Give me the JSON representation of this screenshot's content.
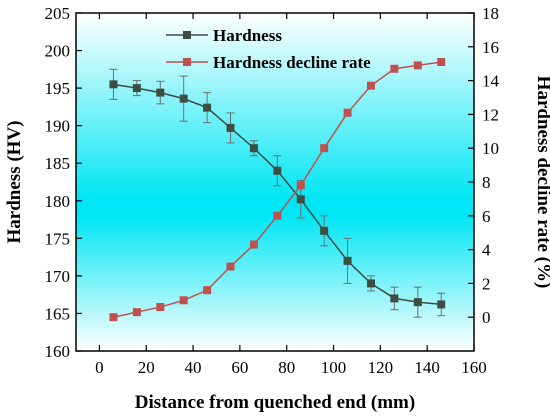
{
  "chart_data": {
    "type": "line",
    "xlabel": "Distance from quenched end (mm)",
    "ylabel_left": "Hardness (HV)",
    "ylabel_right": "Hardness decline rate (%)",
    "xlim": [
      -10,
      160
    ],
    "xticks": [
      0,
      20,
      40,
      60,
      80,
      100,
      120,
      140,
      160
    ],
    "ylim_left": [
      160,
      205
    ],
    "yticks_left": [
      160,
      165,
      170,
      175,
      180,
      185,
      190,
      195,
      200,
      205
    ],
    "ylim_right": [
      -2,
      18
    ],
    "yticks_right": [
      0,
      2,
      4,
      6,
      8,
      10,
      12,
      14,
      16,
      18
    ],
    "legend_position": "top-center",
    "series": [
      {
        "name": "Hardness",
        "axis": "left",
        "color": "#3d4d42",
        "x": [
          6,
          16,
          26,
          36,
          46,
          56,
          66,
          76,
          86,
          96,
          106,
          116,
          126,
          136,
          146
        ],
        "values": [
          195.5,
          195.0,
          194.4,
          193.6,
          192.4,
          189.7,
          187.0,
          184.0,
          180.2,
          176.0,
          172.0,
          169.0,
          167.0,
          166.5,
          166.2
        ],
        "error": [
          2.0,
          1.0,
          1.5,
          3.0,
          2.0,
          2.0,
          1.0,
          2.0,
          2.5,
          2.0,
          3.0,
          1.0,
          1.5,
          2.0,
          1.5
        ]
      },
      {
        "name": "Hardness decline rate",
        "axis": "right",
        "color": "#c0504d",
        "x": [
          6,
          16,
          26,
          36,
          46,
          56,
          66,
          76,
          86,
          96,
          106,
          116,
          126,
          136,
          146
        ],
        "values": [
          0.0,
          0.3,
          0.6,
          1.0,
          1.6,
          3.0,
          4.3,
          6.0,
          7.8,
          10.0,
          12.1,
          13.7,
          14.7,
          14.9,
          15.1
        ]
      }
    ]
  }
}
